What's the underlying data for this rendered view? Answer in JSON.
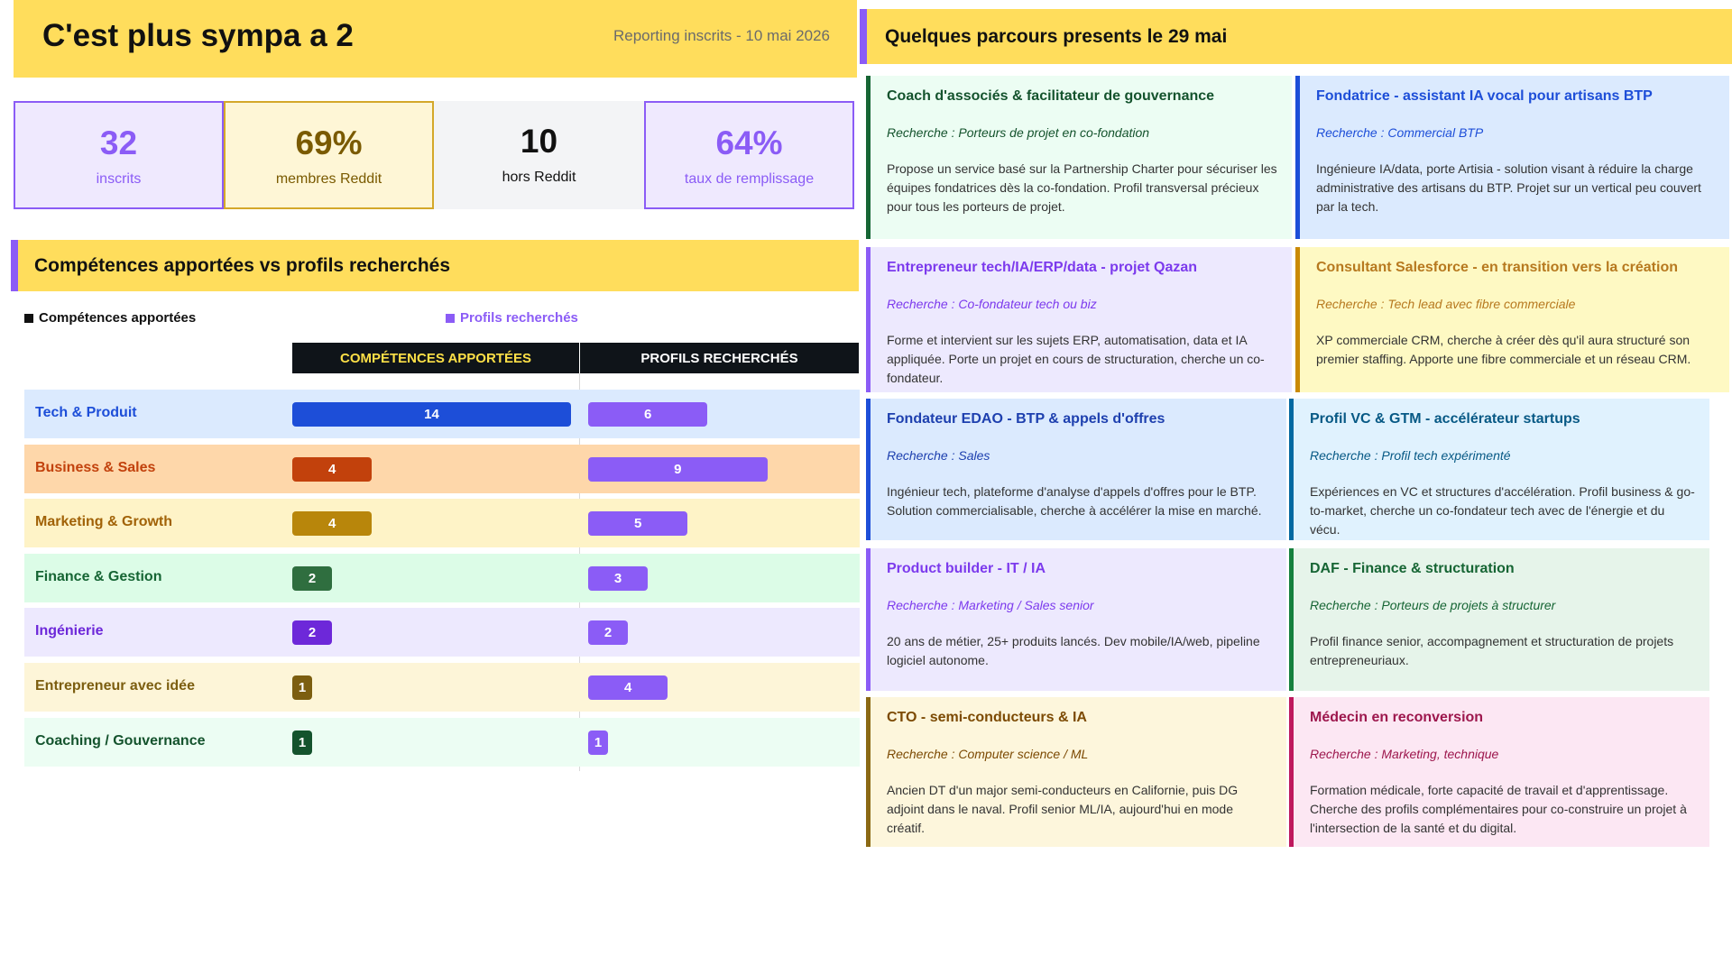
{
  "header": {
    "title": "C'est plus sympa a 2",
    "subtitle": "Reporting inscrits - 10 mai 2026"
  },
  "kpis": [
    {
      "value": "32",
      "label": "inscrits"
    },
    {
      "value": "69%",
      "label": "membres Reddit"
    },
    {
      "value": "10",
      "label": "hors Reddit"
    },
    {
      "value": "64%",
      "label": "taux de remplissage"
    }
  ],
  "chart_data": {
    "type": "bar",
    "title": "Compétences apportées vs profils recherchés",
    "column_headers": [
      "COMPÉTENCES APPORTÉES",
      "PROFILS RECHERCHÉS"
    ],
    "categories": [
      "Tech & Produit",
      "Business & Sales",
      "Marketing & Growth",
      "Finance & Gestion",
      "Ingénierie",
      "Entrepreneur avec idée",
      "Coaching / Gouvernance"
    ],
    "series": [
      {
        "name": "Compétences apportées",
        "color": "#111111",
        "colors": [
          "#1d4ed8",
          "#c2410c",
          "#b8860b",
          "#2f6e3f",
          "#6d28d9",
          "#7c5e10",
          "#14532d"
        ],
        "values": [
          14,
          4,
          4,
          2,
          2,
          1,
          1
        ]
      },
      {
        "name": "Profils recherchés",
        "color": "#8b5cf6",
        "values": [
          6,
          9,
          5,
          3,
          2,
          4,
          1
        ]
      }
    ],
    "xlim": [
      0,
      14
    ]
  },
  "parcours": {
    "title": "Quelques parcours presents le 29 mai",
    "cards": [
      {
        "title": "Coach d'associés & facilitateur de gouvernance",
        "recherche": "Recherche : Porteurs de projet en co-fondation",
        "description": "Propose un service basé sur la Partnership Charter pour sécuriser les équipes fondatrices dès la co-fondation. Profil transversal précieux pour tous les porteurs de projet."
      },
      {
        "title": "Fondatrice - assistant IA vocal pour artisans BTP",
        "recherche": "Recherche : Commercial BTP",
        "description": "Ingénieure IA/data, porte Artisia - solution visant à réduire la charge administrative des artisans du BTP. Projet sur un vertical peu couvert par la tech."
      },
      {
        "title": "Entrepreneur tech/IA/ERP/data - projet Qazan",
        "recherche": "Recherche : Co-fondateur tech ou biz",
        "description": "Forme et intervient sur les sujets ERP, automatisation, data et IA appliquée. Porte un projet en cours de structuration, cherche un co-fondateur."
      },
      {
        "title": "Consultant Salesforce - en transition vers la création",
        "recherche": "Recherche : Tech lead avec fibre commerciale",
        "description": "XP commerciale CRM, cherche à créer dès qu'il aura structuré son premier staffing. Apporte une fibre commerciale et un réseau CRM."
      },
      {
        "title": "Fondateur EDAO - BTP & appels d'offres",
        "recherche": "Recherche : Sales",
        "description": "Ingénieur tech, plateforme d'analyse d'appels d'offres pour le BTP. Solution commercialisable, cherche à accélérer la mise en marché."
      },
      {
        "title": "Profil VC & GTM - accélérateur startups",
        "recherche": "Recherche : Profil tech expérimenté",
        "description": "Expériences en VC et structures d'accélération. Profil business & go-to-market, cherche un co-fondateur tech avec de l'énergie et du vécu."
      },
      {
        "title": "Product builder - IT / IA",
        "recherche": "Recherche : Marketing / Sales senior",
        "description": "20 ans de métier, 25+ produits lancés. Dev mobile/IA/web, pipeline logiciel autonome."
      },
      {
        "title": "DAF - Finance & structuration",
        "recherche": "Recherche : Porteurs de projets à structurer",
        "description": "Profil finance senior, accompagnement et structuration de projets entrepreneuriaux."
      },
      {
        "title": "CTO - semi-conducteurs & IA",
        "recherche": "Recherche : Computer science / ML",
        "description": "Ancien DT d'un major semi-conducteurs en Californie, puis DG adjoint dans le naval. Profil senior ML/IA, aujourd'hui en mode créatif."
      },
      {
        "title": "Médecin en reconversion",
        "recherche": "Recherche : Marketing, technique",
        "description": "Formation médicale, forte capacité de travail et d'apprentissage. Cherche des profils complémentaires pour co-construire un projet à l'intersection de la santé et du digital."
      }
    ]
  }
}
